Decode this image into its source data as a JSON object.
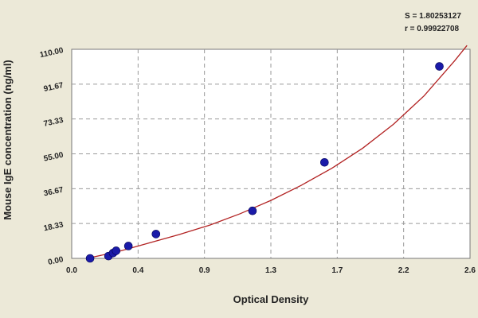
{
  "chart_data": {
    "type": "scatter",
    "title": "",
    "xlabel": "Optical Density",
    "ylabel": "Mouse IgE concentration (ng/ml)",
    "xlim": [
      0.0,
      2.6
    ],
    "ylim": [
      0.0,
      110.0
    ],
    "x_ticks": [
      "0.0",
      "0.4",
      "0.9",
      "1.3",
      "1.7",
      "2.2",
      "2.6"
    ],
    "y_ticks": [
      "0.00",
      "18.33",
      "36.67",
      "55.00",
      "73.33",
      "91.67",
      "110.00"
    ],
    "grid": true,
    "stats": {
      "s": "S = 1.80253127",
      "r": "r = 0.99922708"
    },
    "series": [
      {
        "points": [
          {
            "x": 0.12,
            "y": 0.0
          },
          {
            "x": 0.24,
            "y": 1.2
          },
          {
            "x": 0.27,
            "y": 2.8
          },
          {
            "x": 0.29,
            "y": 4.0
          },
          {
            "x": 0.37,
            "y": 6.5
          },
          {
            "x": 0.55,
            "y": 12.8
          },
          {
            "x": 1.18,
            "y": 25.0
          },
          {
            "x": 1.65,
            "y": 50.5
          },
          {
            "x": 2.4,
            "y": 101.0
          }
        ],
        "color": "#1a1aa8"
      },
      {
        "curve": [
          {
            "x": 0.1,
            "y": 0.0
          },
          {
            "x": 0.3,
            "y": 3.5
          },
          {
            "x": 0.5,
            "y": 8.0
          },
          {
            "x": 0.7,
            "y": 12.5
          },
          {
            "x": 0.9,
            "y": 17.5
          },
          {
            "x": 1.1,
            "y": 23.5
          },
          {
            "x": 1.3,
            "y": 30.5
          },
          {
            "x": 1.5,
            "y": 38.5
          },
          {
            "x": 1.7,
            "y": 47.5
          },
          {
            "x": 1.9,
            "y": 58.0
          },
          {
            "x": 2.1,
            "y": 70.5
          },
          {
            "x": 2.3,
            "y": 85.5
          },
          {
            "x": 2.5,
            "y": 104.0
          },
          {
            "x": 2.58,
            "y": 112.0
          }
        ],
        "color": "#b22222"
      }
    ]
  }
}
